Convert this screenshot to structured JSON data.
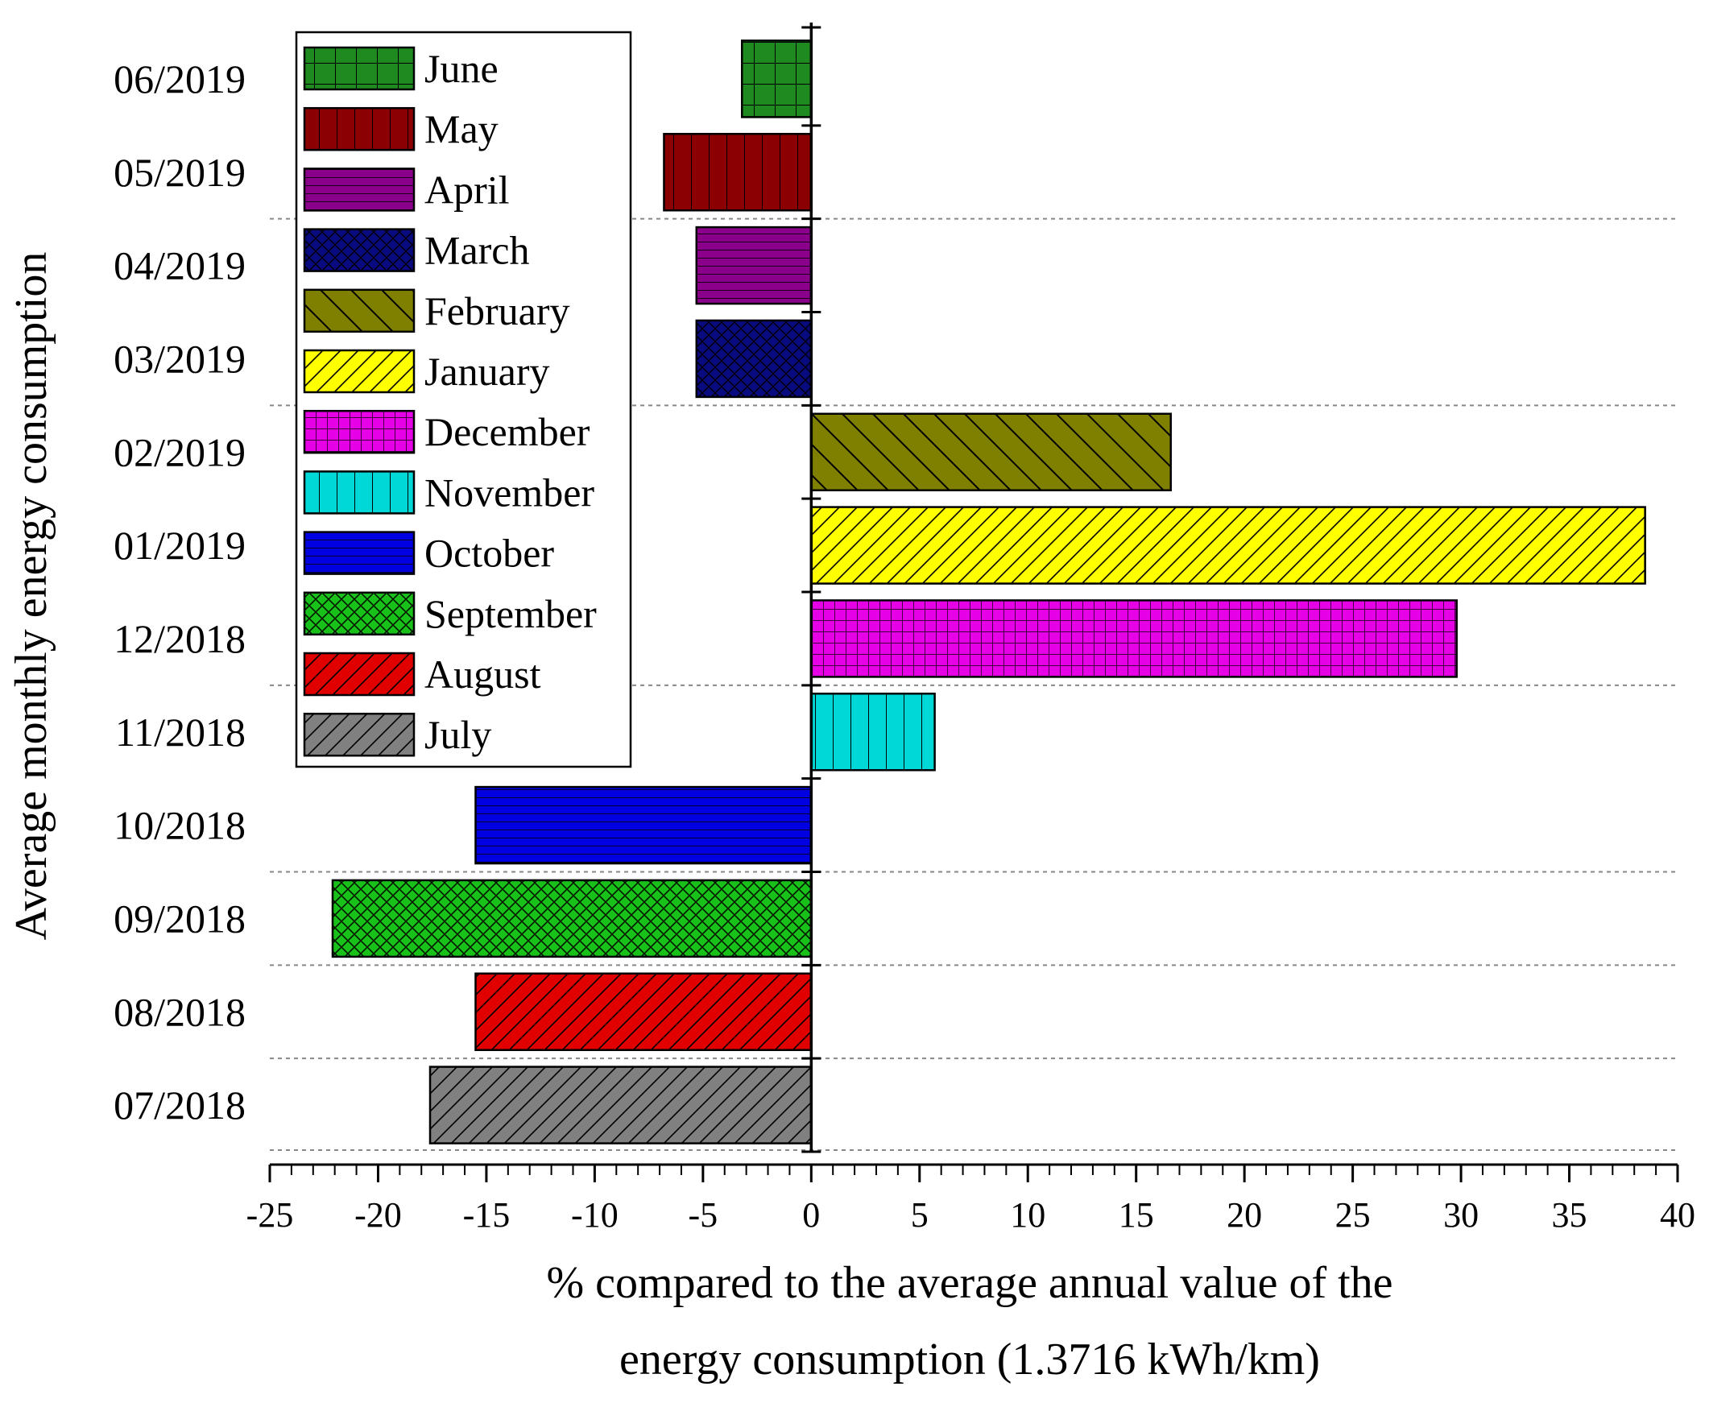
{
  "chart_data": {
    "type": "bar",
    "orientation": "horizontal",
    "ylabel": "Average monthly energy consumption",
    "xlabel_lines": [
      "% compared to the average annual value of the",
      "energy consumption (1.3716 kWh/km)"
    ],
    "xlim": [
      -25,
      40
    ],
    "xticks": [
      -25,
      -20,
      -15,
      -10,
      -5,
      0,
      5,
      10,
      15,
      20,
      25,
      30,
      35,
      40
    ],
    "legend_position": "top-left",
    "bars": [
      {
        "category": "06/2019",
        "legend": "June",
        "value": -3.2,
        "fill": "#1f8a1f",
        "pattern": "grid"
      },
      {
        "category": "05/2019",
        "legend": "May",
        "value": -6.8,
        "fill": "#8b0000",
        "pattern": "vertical"
      },
      {
        "category": "04/2019",
        "legend": "April",
        "value": -5.3,
        "fill": "#8b008b",
        "pattern": "horizontal"
      },
      {
        "category": "03/2019",
        "legend": "March",
        "value": -5.3,
        "fill": "#0a0a80",
        "pattern": "crosshatch"
      },
      {
        "category": "02/2019",
        "legend": "February",
        "value": 16.6,
        "fill": "#808000",
        "pattern": "backdiag"
      },
      {
        "category": "01/2019",
        "legend": "January",
        "value": 38.5,
        "fill": "#ffff00",
        "pattern": "diag"
      },
      {
        "category": "12/2018",
        "legend": "December",
        "value": 29.8,
        "fill": "#e600e6",
        "pattern": "finegrid"
      },
      {
        "category": "11/2018",
        "legend": "November",
        "value": 5.7,
        "fill": "#00d8d8",
        "pattern": "vertical"
      },
      {
        "category": "10/2018",
        "legend": "October",
        "value": -15.5,
        "fill": "#0000e0",
        "pattern": "horizontal"
      },
      {
        "category": "09/2018",
        "legend": "September",
        "value": -22.1,
        "fill": "#19c019",
        "pattern": "crosshatch"
      },
      {
        "category": "08/2018",
        "legend": "August",
        "value": -15.5,
        "fill": "#e00000",
        "pattern": "diag"
      },
      {
        "category": "07/2018",
        "legend": "July",
        "value": -17.6,
        "fill": "#808080",
        "pattern": "diag"
      }
    ],
    "legend_order": [
      "June",
      "May",
      "April",
      "March",
      "February",
      "January",
      "December",
      "November",
      "October",
      "September",
      "August",
      "July"
    ]
  }
}
